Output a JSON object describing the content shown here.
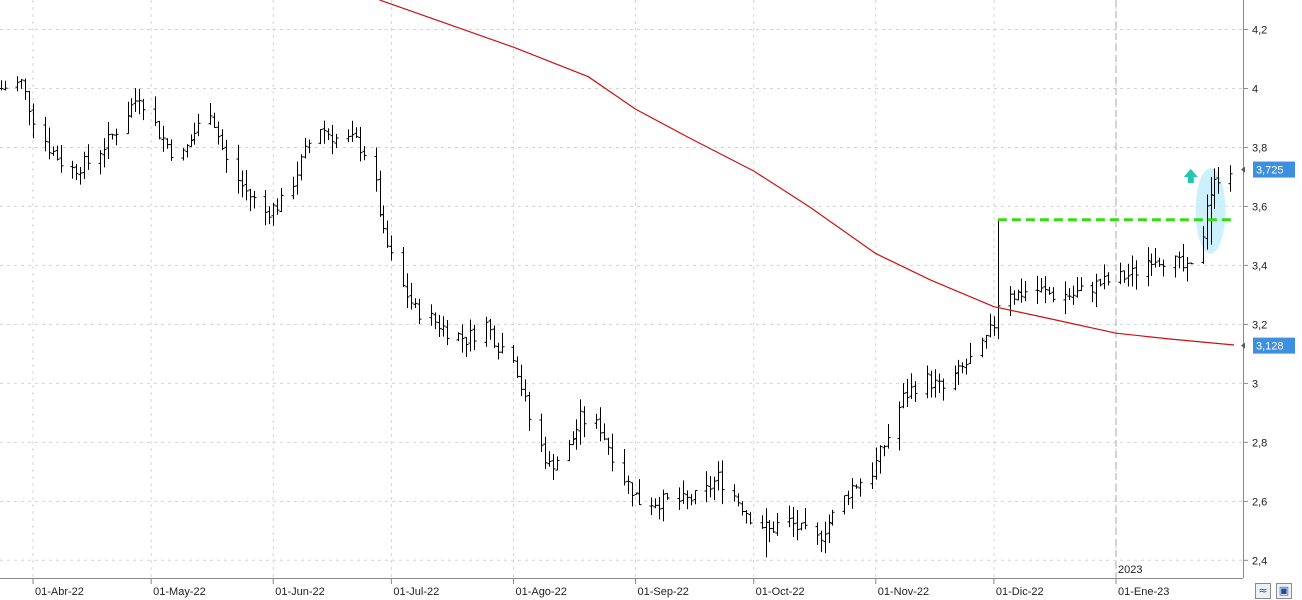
{
  "chart_data": {
    "type": "ohlc",
    "title": "",
    "xlabel": "",
    "ylabel": "",
    "ylim": [
      2.34,
      4.3
    ],
    "grid": true,
    "y_ticks": [
      {
        "value": 2.4,
        "label": "2,4"
      },
      {
        "value": 2.6,
        "label": "2,6"
      },
      {
        "value": 2.8,
        "label": "2,8"
      },
      {
        "value": 3.0,
        "label": "3"
      },
      {
        "value": 3.2,
        "label": "3,2"
      },
      {
        "value": 3.4,
        "label": "3,4"
      },
      {
        "value": 3.6,
        "label": "3,6"
      },
      {
        "value": 3.8,
        "label": "3,8"
      },
      {
        "value": 4.0,
        "label": "4"
      },
      {
        "value": 4.2,
        "label": "4,2"
      }
    ],
    "x_ticks": [
      {
        "date": "2022-04-01",
        "label": "01-Abr-22"
      },
      {
        "date": "2022-05-01",
        "label": "01-May-22"
      },
      {
        "date": "2022-06-01",
        "label": "01-Jun-22"
      },
      {
        "date": "2022-07-01",
        "label": "01-Jul-22"
      },
      {
        "date": "2022-08-01",
        "label": "01-Ago-22"
      },
      {
        "date": "2022-09-01",
        "label": "01-Sep-22"
      },
      {
        "date": "2022-10-01",
        "label": "01-Oct-22"
      },
      {
        "date": "2022-11-01",
        "label": "01-Nov-22"
      },
      {
        "date": "2022-12-01",
        "label": "01-Dic-22"
      },
      {
        "date": "2023-01-01",
        "label": "01-Ene-23"
      }
    ],
    "year_marker": {
      "date": "2023-01-01",
      "label": "2023"
    },
    "price_anchors": [
      [
        "2022-03-24",
        4.0
      ],
      [
        "2022-03-29",
        4.02
      ],
      [
        "2022-04-01",
        3.9
      ],
      [
        "2022-04-05",
        3.8
      ],
      [
        "2022-04-10",
        3.72
      ],
      [
        "2022-04-15",
        3.75
      ],
      [
        "2022-04-20",
        3.82
      ],
      [
        "2022-04-25",
        3.92
      ],
      [
        "2022-04-28",
        3.98
      ],
      [
        "2022-05-03",
        3.85
      ],
      [
        "2022-05-08",
        3.75
      ],
      [
        "2022-05-12",
        3.85
      ],
      [
        "2022-05-16",
        3.93
      ],
      [
        "2022-05-20",
        3.75
      ],
      [
        "2022-05-25",
        3.65
      ],
      [
        "2022-05-30",
        3.58
      ],
      [
        "2022-06-04",
        3.62
      ],
      [
        "2022-06-08",
        3.75
      ],
      [
        "2022-06-12",
        3.88
      ],
      [
        "2022-06-17",
        3.83
      ],
      [
        "2022-06-22",
        3.82
      ],
      [
        "2022-06-26",
        3.75
      ],
      [
        "2022-06-29",
        3.5
      ],
      [
        "2022-07-03",
        3.35
      ],
      [
        "2022-07-07",
        3.25
      ],
      [
        "2022-07-11",
        3.22
      ],
      [
        "2022-07-15",
        3.18
      ],
      [
        "2022-07-20",
        3.15
      ],
      [
        "2022-07-25",
        3.2
      ],
      [
        "2022-07-28",
        3.13
      ],
      [
        "2022-08-01",
        3.1
      ],
      [
        "2022-08-05",
        2.88
      ],
      [
        "2022-08-10",
        2.72
      ],
      [
        "2022-08-15",
        2.78
      ],
      [
        "2022-08-18",
        2.88
      ],
      [
        "2022-08-23",
        2.85
      ],
      [
        "2022-08-28",
        2.7
      ],
      [
        "2022-09-02",
        2.6
      ],
      [
        "2022-09-08",
        2.6
      ],
      [
        "2022-09-13",
        2.6
      ],
      [
        "2022-09-18",
        2.62
      ],
      [
        "2022-09-22",
        2.68
      ],
      [
        "2022-09-26",
        2.62
      ],
      [
        "2022-09-30",
        2.55
      ],
      [
        "2022-10-05",
        2.5
      ],
      [
        "2022-10-09",
        2.54
      ],
      [
        "2022-10-13",
        2.5
      ],
      [
        "2022-10-17",
        2.47
      ],
      [
        "2022-10-21",
        2.55
      ],
      [
        "2022-10-26",
        2.65
      ],
      [
        "2022-10-31",
        2.7
      ],
      [
        "2022-11-04",
        2.82
      ],
      [
        "2022-11-08",
        2.95
      ],
      [
        "2022-11-13",
        3.02
      ],
      [
        "2022-11-18",
        2.98
      ],
      [
        "2022-11-23",
        3.05
      ],
      [
        "2022-11-28",
        3.12
      ],
      [
        "2022-12-01",
        3.2
      ],
      [
        "2022-12-03",
        3.35
      ],
      [
        "2022-12-06",
        3.3
      ],
      [
        "2022-12-11",
        3.32
      ],
      [
        "2022-12-16",
        3.3
      ],
      [
        "2022-12-21",
        3.3
      ],
      [
        "2022-12-26",
        3.33
      ],
      [
        "2022-12-31",
        3.35
      ],
      [
        "2023-01-05",
        3.37
      ],
      [
        "2023-01-10",
        3.43
      ],
      [
        "2023-01-15",
        3.42
      ],
      [
        "2023-01-19",
        3.38
      ],
      [
        "2023-01-22",
        3.4
      ],
      [
        "2023-01-24",
        3.62
      ],
      [
        "2023-01-28",
        3.73
      ]
    ],
    "moving_average": {
      "color": "#cc1111",
      "points": [
        [
          "2022-06-28",
          4.3
        ],
        [
          "2022-07-15",
          4.22
        ],
        [
          "2022-08-01",
          4.14
        ],
        [
          "2022-08-20",
          4.04
        ],
        [
          "2022-09-01",
          3.93
        ],
        [
          "2022-09-15",
          3.83
        ],
        [
          "2022-10-01",
          3.72
        ],
        [
          "2022-10-15",
          3.6
        ],
        [
          "2022-11-01",
          3.44
        ],
        [
          "2022-11-15",
          3.35
        ],
        [
          "2022-12-01",
          3.26
        ],
        [
          "2022-12-15",
          3.22
        ],
        [
          "2023-01-01",
          3.17
        ],
        [
          "2023-01-15",
          3.15
        ],
        [
          "2023-01-31",
          3.13
        ]
      ]
    },
    "resistance_line": {
      "value": 3.555,
      "from": "2022-12-02",
      "to": "2023-01-31",
      "color": "#33dd11"
    },
    "price_badges": [
      {
        "label": "3,725",
        "value": 3.725,
        "color": "#3d8fe0"
      },
      {
        "label": "3,128",
        "value": 3.128,
        "color": "#3d8fe0"
      }
    ],
    "breakout_highlight": {
      "date": "2023-01-25",
      "low": 3.46,
      "high": 3.71,
      "color": "#bfeefc"
    },
    "breakout_arrow": {
      "date": "2023-01-20",
      "value": 3.7,
      "color": "#22c7b2",
      "icon": "up-arrow-icon"
    }
  }
}
